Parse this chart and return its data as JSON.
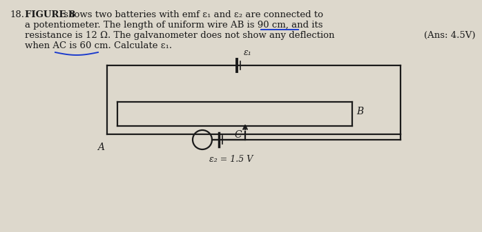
{
  "bg_color": "#ddd8cc",
  "text_color": "#1a1a1a",
  "line_color": "#1a1a1a",
  "blue_color": "#1a3acc",
  "fig_width": 6.98,
  "fig_height": 3.37,
  "q_num": "18.",
  "bold_text": "FIGURE 8",
  "line1": " shows two batteries with emf ε₁ and ε₂ are connected to",
  "line2": "a potentiometer. The length of uniform wire AB is 90 cm, and its",
  "line3": "resistance is 12 Ω. The galvanometer does not show any deflection",
  "line4": "when AC is 60 cm. Calculate ε₁.",
  "ans_text": "(Ans: 4.5V)",
  "label_e1": "ε₁",
  "label_e2": "ε₂ = 1.5 V",
  "label_A": "A",
  "label_B": "B",
  "label_C": "C"
}
